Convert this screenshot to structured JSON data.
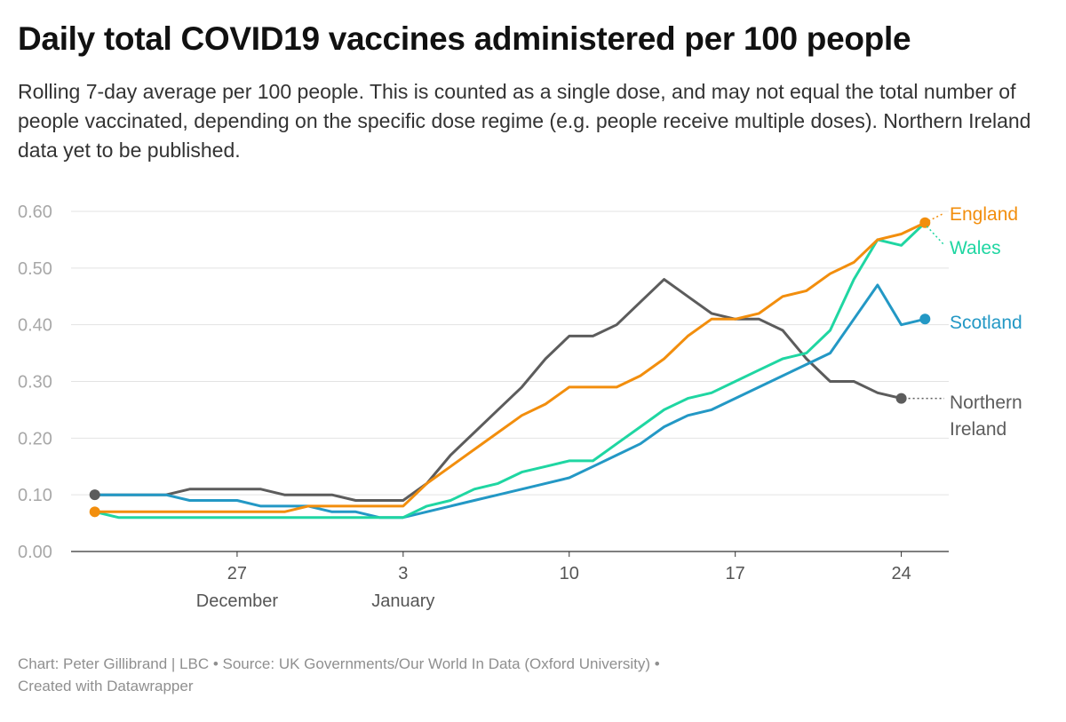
{
  "title": "Daily total COVID19 vaccines administered per 100 people",
  "subtitle": "Rolling 7-day average per 100 people. This is counted as a single dose, and may not equal the total number of people vaccinated, depending on the specific dose regime (e.g. people receive multiple doses). Northern Ireland data yet to be published.",
  "footer": {
    "line1": "Chart: Peter Gillibrand | LBC • Source: UK Governments/Our World In Data (Oxford University) •",
    "line2": "Created with Datawrapper"
  },
  "chart_data": {
    "type": "line",
    "x": [
      "2020-12-21",
      "2020-12-22",
      "2020-12-23",
      "2020-12-24",
      "2020-12-25",
      "2020-12-26",
      "2020-12-27",
      "2020-12-28",
      "2020-12-29",
      "2020-12-30",
      "2020-12-31",
      "2021-01-01",
      "2021-01-02",
      "2021-01-03",
      "2021-01-04",
      "2021-01-05",
      "2021-01-06",
      "2021-01-07",
      "2021-01-08",
      "2021-01-09",
      "2021-01-10",
      "2021-01-11",
      "2021-01-12",
      "2021-01-13",
      "2021-01-14",
      "2021-01-15",
      "2021-01-16",
      "2021-01-17",
      "2021-01-18",
      "2021-01-19",
      "2021-01-20",
      "2021-01-21",
      "2021-01-22",
      "2021-01-23",
      "2021-01-24",
      "2021-01-25"
    ],
    "xlim": [
      "2020-12-20",
      "2021-01-26"
    ],
    "x_ticks": [
      {
        "date": "2020-12-27",
        "label": "27",
        "sublabel": "December"
      },
      {
        "date": "2021-01-03",
        "label": "3",
        "sublabel": "January"
      },
      {
        "date": "2021-01-10",
        "label": "10",
        "sublabel": ""
      },
      {
        "date": "2021-01-17",
        "label": "17",
        "sublabel": ""
      },
      {
        "date": "2021-01-24",
        "label": "24",
        "sublabel": ""
      }
    ],
    "ylim": [
      0,
      0.6
    ],
    "y_ticks": [
      "0.00",
      "0.10",
      "0.20",
      "0.30",
      "0.40",
      "0.50",
      "0.60"
    ],
    "grid": true,
    "series": [
      {
        "name": "Northern Ireland",
        "label_lines": [
          "Northern",
          "Ireland"
        ],
        "color": "#5c5c5c",
        "values": [
          0.1,
          0.1,
          0.1,
          0.1,
          0.11,
          0.11,
          0.11,
          0.11,
          0.1,
          0.1,
          0.1,
          0.09,
          0.09,
          0.09,
          0.12,
          0.17,
          0.21,
          0.25,
          0.29,
          0.34,
          0.38,
          0.38,
          0.4,
          0.44,
          0.48,
          0.45,
          0.42,
          0.41,
          0.41,
          0.39,
          0.34,
          0.3,
          0.3,
          0.28,
          0.27,
          null
        ]
      },
      {
        "name": "Scotland",
        "label_lines": [
          "Scotland"
        ],
        "color": "#2398c5",
        "values": [
          0.1,
          0.1,
          0.1,
          0.1,
          0.09,
          0.09,
          0.09,
          0.08,
          0.08,
          0.08,
          0.07,
          0.07,
          0.06,
          0.06,
          0.07,
          0.08,
          0.09,
          0.1,
          0.11,
          0.12,
          0.13,
          0.15,
          0.17,
          0.19,
          0.22,
          0.24,
          0.25,
          0.27,
          0.29,
          0.31,
          0.33,
          0.35,
          0.41,
          0.47,
          0.4,
          0.41
        ]
      },
      {
        "name": "Wales",
        "label_lines": [
          "Wales"
        ],
        "color": "#1fd6a2",
        "values": [
          0.07,
          0.06,
          0.06,
          0.06,
          0.06,
          0.06,
          0.06,
          0.06,
          0.06,
          0.06,
          0.06,
          0.06,
          0.06,
          0.06,
          0.08,
          0.09,
          0.11,
          0.12,
          0.14,
          0.15,
          0.16,
          0.16,
          0.19,
          0.22,
          0.25,
          0.27,
          0.28,
          0.3,
          0.32,
          0.34,
          0.35,
          0.39,
          0.48,
          0.55,
          0.54,
          0.58
        ]
      },
      {
        "name": "England",
        "label_lines": [
          "England"
        ],
        "color": "#f28e0d",
        "values": [
          0.07,
          0.07,
          0.07,
          0.07,
          0.07,
          0.07,
          0.07,
          0.07,
          0.07,
          0.08,
          0.08,
          0.08,
          0.08,
          0.08,
          0.12,
          0.15,
          0.18,
          0.21,
          0.24,
          0.26,
          0.29,
          0.29,
          0.29,
          0.31,
          0.34,
          0.38,
          0.41,
          0.41,
          0.42,
          0.45,
          0.46,
          0.49,
          0.51,
          0.55,
          0.56,
          0.58
        ]
      }
    ]
  }
}
